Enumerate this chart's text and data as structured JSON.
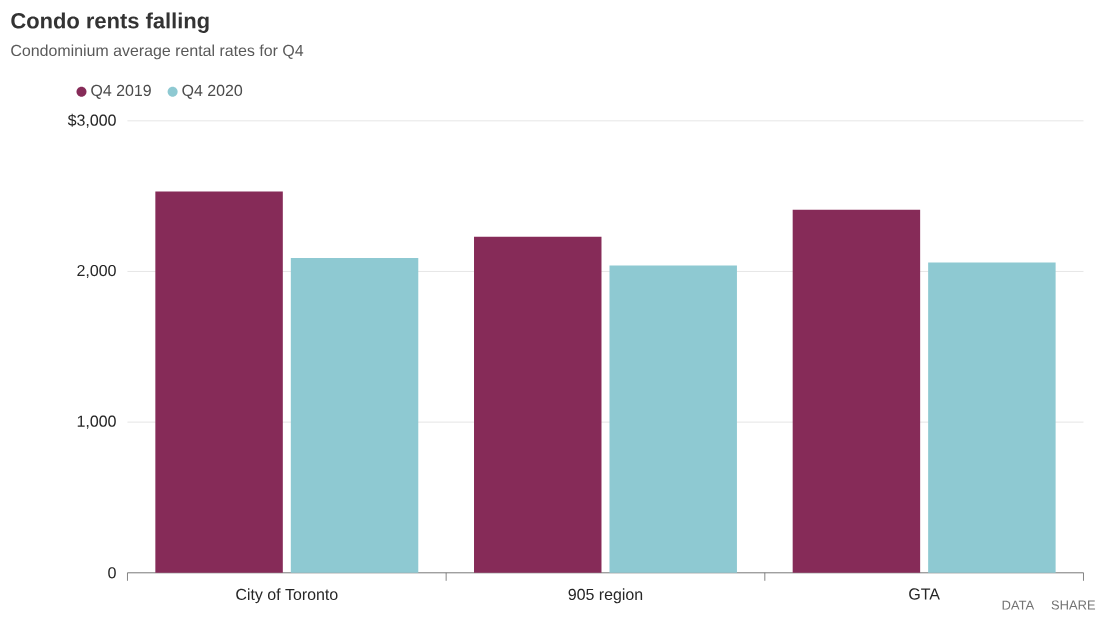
{
  "chart_data": {
    "type": "bar",
    "title": "Condo rents falling",
    "subtitle": "Condominium average rental rates for Q4",
    "categories": [
      "City of Toronto",
      "905 region",
      "GTA"
    ],
    "series": [
      {
        "name": "Q4 2019",
        "color": "#862b58",
        "values": [
          2530,
          2230,
          2410
        ]
      },
      {
        "name": "Q4 2020",
        "color": "#8ec9d2",
        "values": [
          2090,
          2040,
          2060
        ]
      }
    ],
    "ylim": [
      0,
      3000
    ],
    "yticks": [
      0,
      {
        "value": 1000,
        "label": "1,000"
      },
      {
        "value": 2000,
        "label": "2,000"
      },
      {
        "value": 3000,
        "label": "$3,000"
      }
    ],
    "grid": "y",
    "legend": "top left",
    "marker": "circle",
    "annotations": [
      "DATA",
      "SHARE"
    ]
  }
}
